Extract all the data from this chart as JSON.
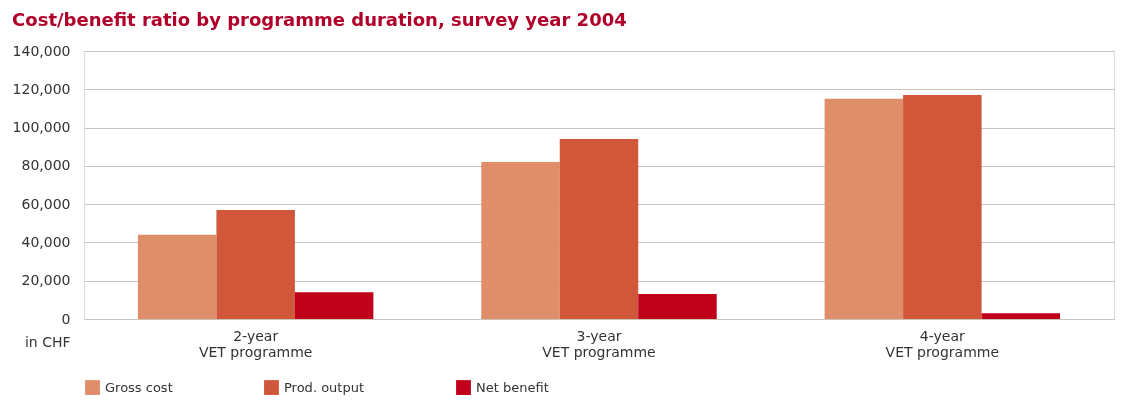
{
  "chart_data": {
    "type": "bar",
    "title": "Cost/benefit ratio by programme duration, survey year 2004",
    "ylabel": "in CHF",
    "categories": [
      "2-year\nVET programme",
      "3-year\nVET programme",
      "4-year\nVET programme"
    ],
    "series": [
      {
        "name": "Gross cost",
        "color": "#e08e69",
        "values": [
          44000,
          82000,
          115000
        ]
      },
      {
        "name": "Prod. output",
        "color": "#d0573a",
        "values": [
          57000,
          94000,
          117000
        ]
      },
      {
        "name": "Net benefit",
        "color": "#c0001a",
        "values": [
          14000,
          13000,
          3000
        ]
      }
    ],
    "ylim": [
      0,
      140000
    ],
    "yticks": [
      0,
      {
        "value": 20000,
        "label": "20,000"
      },
      {
        "value": 40000,
        "label": "40,000"
      },
      {
        "value": 60000,
        "label": "60,000"
      },
      {
        "value": 80000,
        "label": "80,000"
      },
      {
        "value": 100000,
        "label": "100,000"
      },
      {
        "value": 120000,
        "label": "120,000"
      },
      {
        "value": 140000,
        "label": "140,000"
      }
    ],
    "grid": "y",
    "legend": "bottom"
  }
}
